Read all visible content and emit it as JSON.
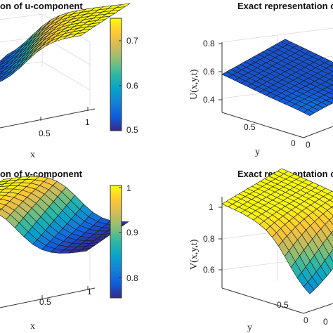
{
  "chart_data": [
    {
      "type": "surface",
      "title": "on of u-component",
      "xlabel": "x",
      "x_ticks": [
        "0.5",
        "1"
      ],
      "zlim": [
        0.5,
        0.75
      ],
      "colorbar_ticks": [
        "0.7",
        "0.6",
        "0.5"
      ],
      "colorbar_range": [
        0.5,
        0.75
      ],
      "colormap": "parula"
    },
    {
      "type": "surface",
      "title": "Exact representation o",
      "zlabel": "U(x,y,t)",
      "ylabel": "y",
      "z_ticks": [
        "0.8",
        "0.6",
        "0.4"
      ],
      "zlim": [
        0.4,
        0.8
      ],
      "y_ticks": [
        "0.5",
        "0"
      ],
      "x_ticks": [
        "0"
      ],
      "colormap": "parula"
    },
    {
      "type": "surface",
      "title": "on of v-component",
      "xlabel": "x",
      "x_ticks": [
        "0.5",
        "1"
      ],
      "zlim": [
        0.75,
        1.0
      ],
      "colorbar_ticks": [
        "1",
        "0.9",
        "0.8"
      ],
      "colorbar_range": [
        0.75,
        1.0
      ],
      "colormap": "parula"
    },
    {
      "type": "surface",
      "title": "Exact representation o",
      "zlabel": "V(x,y,t)",
      "ylabel": "y",
      "z_ticks": [
        "1",
        "0.8",
        "0.6"
      ],
      "zlim": [
        0.6,
        1.0
      ],
      "y_ticks": [
        "0.5",
        "0"
      ],
      "x_ticks": [
        "0"
      ],
      "colormap": "parula"
    }
  ],
  "colors": {
    "parula": [
      "#352a87",
      "#0f5cdd",
      "#1481d6",
      "#06a4ca",
      "#2eb7a4",
      "#87bf77",
      "#d1bb59",
      "#fec832",
      "#f9fb0e"
    ],
    "grid": "#d9d9d9",
    "axis": "#333333"
  }
}
